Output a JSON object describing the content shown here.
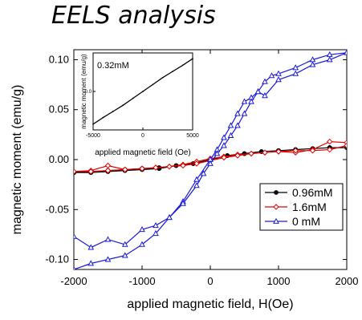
{
  "heading": "EELS analysis",
  "chart_data": [
    {
      "type": "line",
      "xlabel": "applied magnetic field, H(Oe)",
      "ylabel": "magnetic moment (emu/g)",
      "xlim": [
        -2000,
        2000
      ],
      "ylim": [
        -0.11,
        0.11
      ],
      "xticks": [
        -2000,
        -1000,
        0,
        1000,
        2000
      ],
      "xtick_labels": [
        "-2000",
        "-1000",
        "0",
        "1000",
        "2000"
      ],
      "yticks": [
        -0.1,
        -0.05,
        0.0,
        0.05,
        0.1
      ],
      "ytick_labels": [
        "-0.10",
        "-0.05",
        "0.00",
        "0.05",
        "0.10"
      ],
      "legend_position": "lower-right",
      "series": [
        {
          "name": "0.96mM",
          "color": "#000000",
          "marker": "filled-circle",
          "x": [
            -2000,
            -1750,
            -1500,
            -1250,
            -1000,
            -750,
            -500,
            -250,
            0,
            250,
            500,
            750,
            1000,
            1250,
            1500,
            1750,
            2000,
            1750,
            1500,
            1250,
            1000,
            750,
            500,
            250,
            0,
            -250,
            -500,
            -750,
            -1000,
            -1250,
            -1500,
            -1750,
            -2000
          ],
          "y": [
            -0.013,
            -0.013,
            -0.012,
            -0.011,
            -0.01,
            -0.009,
            -0.006,
            -0.004,
            0.0,
            0.004,
            0.006,
            0.008,
            0.009,
            0.01,
            0.011,
            0.012,
            0.012,
            0.012,
            0.011,
            0.01,
            0.009,
            0.008,
            0.006,
            0.004,
            0.0,
            -0.004,
            -0.006,
            -0.008,
            -0.009,
            -0.01,
            -0.011,
            -0.012,
            -0.013
          ]
        },
        {
          "name": "1.6mM",
          "color": "#e00000",
          "marker": "open-diamond",
          "x": [
            -2000,
            -1750,
            -1500,
            -1250,
            -1000,
            -800,
            -600,
            -400,
            -200,
            0,
            200,
            400,
            600,
            800,
            1000,
            1250,
            1500,
            1750,
            2000,
            2000,
            1750,
            1500,
            1250,
            1000,
            800,
            600,
            400,
            200,
            0,
            -200,
            -400,
            -600,
            -800,
            -1000,
            -1250,
            -1500,
            -1750,
            -2000
          ],
          "y": [
            -0.012,
            -0.011,
            -0.006,
            -0.01,
            -0.009,
            -0.008,
            -0.007,
            -0.005,
            -0.002,
            0.001,
            0.003,
            0.005,
            0.006,
            0.007,
            0.008,
            0.007,
            0.01,
            0.018,
            0.017,
            0.014,
            0.01,
            0.009,
            0.009,
            0.008,
            0.007,
            0.006,
            0.004,
            0.002,
            -0.001,
            -0.004,
            -0.006,
            -0.007,
            -0.008,
            -0.009,
            -0.01,
            -0.011,
            -0.012,
            -0.012
          ]
        },
        {
          "name": "0 mM",
          "color": "#1a1adc",
          "marker": "open-triangle",
          "x": [
            -2000,
            -1750,
            -1500,
            -1250,
            -1000,
            -800,
            -600,
            -400,
            -200,
            0,
            100,
            200,
            300,
            400,
            500,
            600,
            700,
            800,
            1000,
            1250,
            1500,
            1750,
            2000,
            1750,
            1500,
            1250,
            1000,
            900,
            800,
            700,
            600,
            500,
            400,
            300,
            200,
            100,
            0,
            -100,
            -200,
            -400,
            -600,
            -800,
            -1000,
            -1250,
            -1500,
            -1750,
            -2000
          ],
          "y": [
            -0.11,
            -0.104,
            -0.1,
            -0.096,
            -0.085,
            -0.074,
            -0.058,
            -0.042,
            -0.02,
            0.0,
            0.01,
            0.022,
            0.034,
            0.046,
            0.058,
            0.062,
            0.068,
            0.064,
            0.08,
            0.086,
            0.095,
            0.1,
            0.107,
            0.105,
            0.1,
            0.092,
            0.086,
            0.084,
            0.078,
            0.068,
            0.058,
            0.046,
            0.034,
            0.024,
            0.014,
            0.006,
            -0.004,
            -0.014,
            -0.026,
            -0.044,
            -0.058,
            -0.066,
            -0.07,
            -0.085,
            -0.08,
            -0.088,
            -0.077
          ]
        }
      ]
    },
    {
      "type": "line",
      "inset": true,
      "label": "0.32mM",
      "xlabel": "applied magnetic field (Oe)",
      "ylabel": "magnetic moment (emu/g)",
      "xlim": [
        -5000,
        5000
      ],
      "ylim": [
        -0.1,
        0.1
      ],
      "xticks": [
        -5000,
        0,
        5000
      ],
      "xtick_labels": [
        "-5000",
        "0",
        "5000"
      ],
      "yticks": [
        0.0
      ],
      "ytick_labels": [
        "0.0"
      ],
      "series": [
        {
          "color": "#000000",
          "x": [
            -5000,
            -4000,
            -3000,
            -2000,
            -1000,
            0,
            1000,
            2000,
            3000,
            4000,
            5000
          ],
          "y": [
            -0.085,
            -0.068,
            -0.052,
            -0.036,
            -0.018,
            0.0,
            0.018,
            0.036,
            0.052,
            0.068,
            0.085
          ]
        }
      ]
    }
  ]
}
